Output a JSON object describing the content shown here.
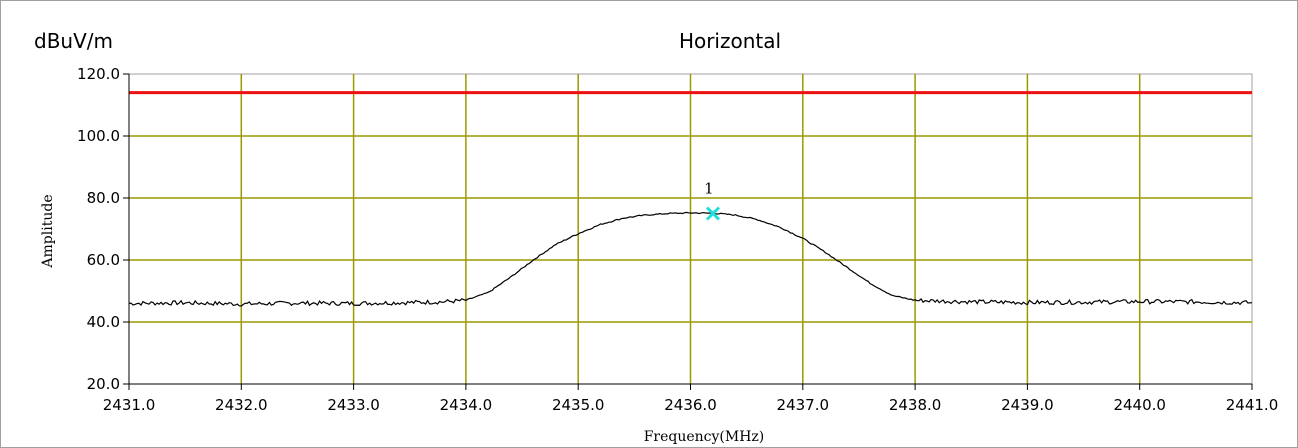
{
  "chart_data": {
    "type": "line",
    "title": "Horizontal",
    "unit_label": "dBuV/m",
    "xlabel": "Frequency(MHz)",
    "ylabel": "Amplitude",
    "xlim": [
      2431.0,
      2441.0
    ],
    "ylim": [
      20.0,
      120.0
    ],
    "x_ticks": [
      2431.0,
      2432.0,
      2433.0,
      2434.0,
      2435.0,
      2436.0,
      2437.0,
      2438.0,
      2439.0,
      2440.0,
      2441.0
    ],
    "x_tick_labels": [
      "2431.0",
      "2432.0",
      "2433.0",
      "2434.0",
      "2435.0",
      "2436.0",
      "2437.0",
      "2438.0",
      "2439.0",
      "2440.0",
      "2441.0"
    ],
    "y_ticks": [
      20.0,
      40.0,
      60.0,
      80.0,
      100.0,
      120.0
    ],
    "y_tick_labels": [
      "20.0",
      "40.0",
      "60.0",
      "80.0",
      "100.0",
      "120.0"
    ],
    "grid": true,
    "limit_line": {
      "value": 114.0,
      "color": "#ee1111"
    },
    "series": [
      {
        "color": "#000000",
        "x": [
          2431.0,
          2431.5,
          2432.0,
          2432.5,
          2433.0,
          2433.5,
          2433.8,
          2434.0,
          2434.2,
          2434.4,
          2434.6,
          2434.8,
          2435.0,
          2435.2,
          2435.4,
          2435.6,
          2435.8,
          2436.0,
          2436.2,
          2436.4,
          2436.6,
          2436.8,
          2437.0,
          2437.2,
          2437.4,
          2437.6,
          2437.8,
          2438.0,
          2438.5,
          2439.0,
          2439.5,
          2440.0,
          2440.5,
          2441.0
        ],
        "values": [
          46.0,
          46.2,
          45.8,
          46.1,
          46.0,
          46.3,
          46.5,
          47.0,
          49.5,
          54.5,
          60.0,
          65.0,
          68.5,
          71.5,
          73.5,
          74.5,
          75.0,
          75.2,
          75.1,
          74.5,
          73.0,
          70.5,
          67.0,
          62.5,
          57.5,
          52.5,
          48.5,
          47.0,
          46.5,
          46.3,
          46.4,
          46.6,
          46.5,
          46.2
        ]
      }
    ],
    "marker": {
      "label": "1",
      "x": 2436.2,
      "y": 75.0,
      "color": "#22dddd"
    },
    "colors": {
      "grid": "#9a9a00",
      "frame": "#a0a0a0"
    }
  }
}
